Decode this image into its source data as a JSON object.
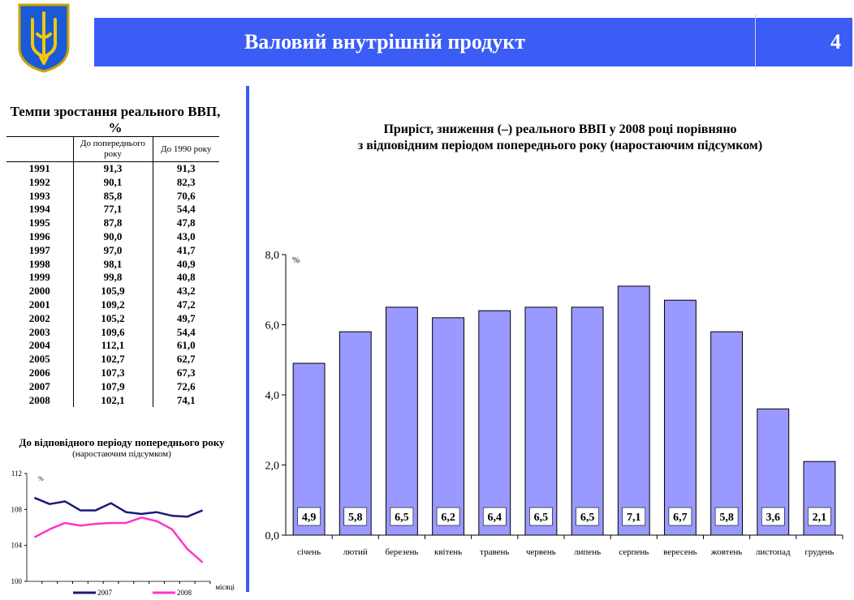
{
  "header": {
    "title": "Валовий внутрішній продукт",
    "page_number": "4"
  },
  "table": {
    "title": "Темпи зростання реального ВВП, %",
    "columns": [
      "",
      "До попереднього року",
      "До 1990 року"
    ],
    "rows": [
      [
        "1991",
        "91,3",
        "91,3"
      ],
      [
        "1992",
        "90,1",
        "82,3"
      ],
      [
        "1993",
        "85,8",
        "70,6"
      ],
      [
        "1994",
        "77,1",
        "54,4"
      ],
      [
        "1995",
        "87,8",
        "47,8"
      ],
      [
        "1996",
        "90,0",
        "43,0"
      ],
      [
        "1997",
        "97,0",
        "41,7"
      ],
      [
        "1998",
        "98,1",
        "40,9"
      ],
      [
        "1999",
        "99,8",
        "40,8"
      ],
      [
        "2000",
        "105,9",
        "43,2"
      ],
      [
        "2001",
        "109,2",
        "47,2"
      ],
      [
        "2002",
        "105,2",
        "49,7"
      ],
      [
        "2003",
        "109,6",
        "54,4"
      ],
      [
        "2004",
        "112,1",
        "61,0"
      ],
      [
        "2005",
        "102,7",
        "62,7"
      ],
      [
        "2006",
        "107,3",
        "67,3"
      ],
      [
        "2007",
        "107,9",
        "72,6"
      ],
      [
        "2008",
        "102,1",
        "74,1"
      ]
    ]
  },
  "small_chart_text": {
    "title": "До відповідного періоду попереднього року",
    "subtitle": "(наростаючим підсумком)"
  },
  "colors": {
    "header": "#3b5cf5",
    "bar": "#9999ff",
    "series_2007": "#1a1a7a",
    "series_2008": "#ff33cc"
  },
  "chart_data": [
    {
      "type": "bar",
      "title": "Приріст, зниження (–) реального ВВП у 2008 році порівняно з відповідним періодом попереднього року (наростаючим підсумком)",
      "title_lines": [
        "Приріст, зниження (–) реального ВВП у 2008 році порівняно",
        "з відповідним періодом попереднього року (наростаючим підсумком)"
      ],
      "categories": [
        "січень",
        "лютий",
        "березень",
        "квітень",
        "травень",
        "червень",
        "липень",
        "серпень",
        "вересень",
        "жовтень",
        "листопад",
        "грудень"
      ],
      "values": [
        4.9,
        5.8,
        6.5,
        6.2,
        6.4,
        6.5,
        6.5,
        7.1,
        6.7,
        5.8,
        3.6,
        2.1
      ],
      "value_labels": [
        "4,9",
        "5,8",
        "6,5",
        "6,2",
        "6,4",
        "6,5",
        "6,5",
        "7,1",
        "6,7",
        "5,8",
        "3,6",
        "2,1"
      ],
      "ylabel": "%",
      "ylim": [
        0,
        8
      ],
      "y_ticks": [
        0,
        2,
        4,
        6,
        8
      ],
      "y_tick_labels": [
        "0,0",
        "2,0",
        "4,0",
        "6,0",
        "8,0"
      ],
      "grid": false
    },
    {
      "type": "line",
      "title": "До відповідного періоду попереднього року",
      "subtitle": "(наростаючим підсумком)",
      "ylabel": "%",
      "xlabel": "місяці",
      "ylim": [
        100,
        112
      ],
      "y_ticks": [
        100,
        104,
        108,
        112
      ],
      "x": [
        1,
        2,
        3,
        4,
        5,
        6,
        7,
        8,
        9,
        10,
        11,
        12
      ],
      "series": [
        {
          "name": "2007",
          "values": [
            109.3,
            108.6,
            108.9,
            107.9,
            107.9,
            108.7,
            107.7,
            107.5,
            107.7,
            107.3,
            107.2,
            107.9
          ]
        },
        {
          "name": "2008",
          "values": [
            104.9,
            105.8,
            106.5,
            106.2,
            106.4,
            106.5,
            106.5,
            107.1,
            106.7,
            105.8,
            103.6,
            102.1
          ]
        }
      ],
      "legend_position": "bottom"
    }
  ]
}
